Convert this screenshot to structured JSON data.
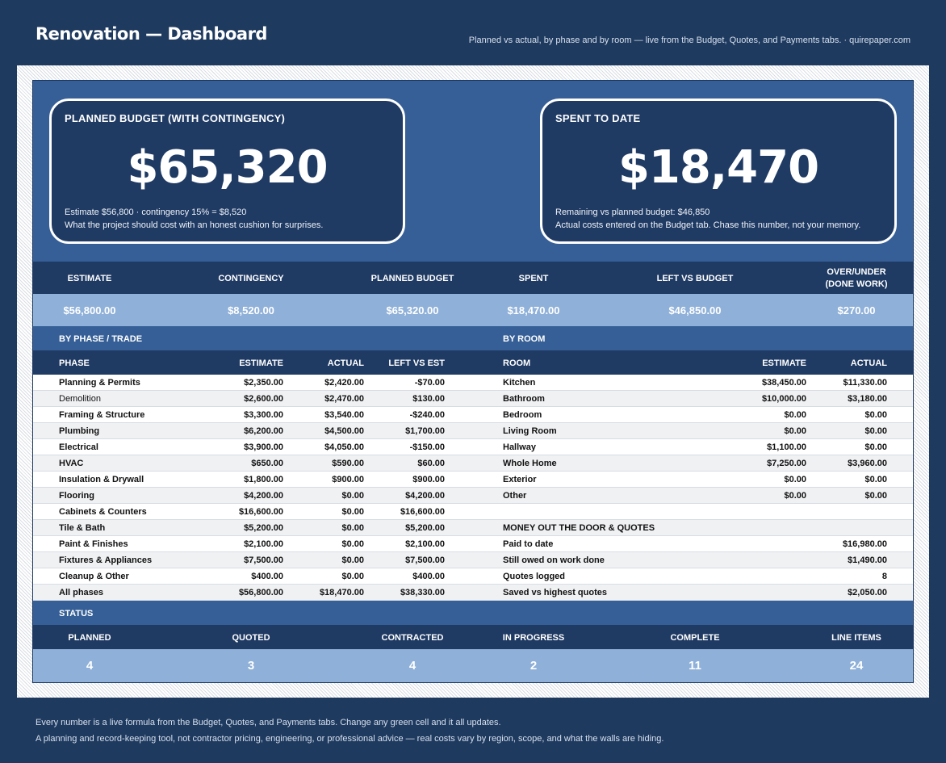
{
  "header": {
    "title": "Renovation — Dashboard",
    "subtitle": "Planned vs actual, by phase and by room — live from the Budget, Quotes, and Payments tabs.  ·  quirepaper.com"
  },
  "cards": {
    "planned": {
      "title": "PLANNED BUDGET (WITH CONTINGENCY)",
      "value": "$65,320",
      "line1": "Estimate $56,800  ·  contingency 15% = $8,520",
      "line2": "What the project should cost with an honest cushion for surprises."
    },
    "spent": {
      "title": "SPENT TO DATE",
      "value": "$18,470",
      "line1": "Remaining vs planned budget: $46,850",
      "line2": "Actual costs entered on the Budget tab. Chase this number, not your memory."
    }
  },
  "summary": {
    "headers": [
      "ESTIMATE",
      "CONTINGENCY",
      "PLANNED BUDGET",
      "SPENT",
      "LEFT VS BUDGET",
      "OVER/UNDER",
      "(DONE WORK)"
    ],
    "values": [
      "$56,800.00",
      "$8,520.00",
      "$65,320.00",
      "$18,470.00",
      "$46,850.00",
      "$270.00"
    ]
  },
  "phase": {
    "section": "BY PHASE / TRADE",
    "cols": [
      "PHASE",
      "ESTIMATE",
      "ACTUAL",
      "LEFT VS EST"
    ],
    "rows": [
      [
        "Planning & Permits",
        "$2,350.00",
        "$2,420.00",
        "-$70.00"
      ],
      [
        "Demolition",
        "$2,600.00",
        "$2,470.00",
        "$130.00"
      ],
      [
        "Framing & Structure",
        "$3,300.00",
        "$3,540.00",
        "-$240.00"
      ],
      [
        "Plumbing",
        "$6,200.00",
        "$4,500.00",
        "$1,700.00"
      ],
      [
        "Electrical",
        "$3,900.00",
        "$4,050.00",
        "-$150.00"
      ],
      [
        "HVAC",
        "$650.00",
        "$590.00",
        "$60.00"
      ],
      [
        "Insulation & Drywall",
        "$1,800.00",
        "$900.00",
        "$900.00"
      ],
      [
        "Flooring",
        "$4,200.00",
        "$0.00",
        "$4,200.00"
      ],
      [
        "Cabinets & Counters",
        "$16,600.00",
        "$0.00",
        "$16,600.00"
      ],
      [
        "Tile & Bath",
        "$5,200.00",
        "$0.00",
        "$5,200.00"
      ],
      [
        "Paint & Finishes",
        "$2,100.00",
        "$0.00",
        "$2,100.00"
      ],
      [
        "Fixtures & Appliances",
        "$7,500.00",
        "$0.00",
        "$7,500.00"
      ],
      [
        "Cleanup & Other",
        "$400.00",
        "$0.00",
        "$400.00"
      ],
      [
        "All phases",
        "$56,800.00",
        "$18,470.00",
        "$38,330.00"
      ]
    ]
  },
  "room": {
    "section": "BY ROOM",
    "cols": [
      "ROOM",
      "ESTIMATE",
      "ACTUAL"
    ],
    "rows": [
      [
        "Kitchen",
        "$38,450.00",
        "$11,330.00"
      ],
      [
        "Bathroom",
        "$10,000.00",
        "$3,180.00"
      ],
      [
        "Bedroom",
        "$0.00",
        "$0.00"
      ],
      [
        "Living Room",
        "$0.00",
        "$0.00"
      ],
      [
        "Hallway",
        "$1,100.00",
        "$0.00"
      ],
      [
        "Whole Home",
        "$7,250.00",
        "$3,960.00"
      ],
      [
        "Exterior",
        "$0.00",
        "$0.00"
      ],
      [
        "Other",
        "$0.00",
        "$0.00"
      ]
    ]
  },
  "money": {
    "title": "MONEY OUT THE DOOR & QUOTES",
    "rows": [
      [
        "Paid to date",
        "$16,980.00"
      ],
      [
        "Still owed on work done",
        "$1,490.00"
      ],
      [
        "Quotes logged",
        "8"
      ],
      [
        "Saved vs highest quotes",
        "$2,050.00"
      ]
    ]
  },
  "status": {
    "section": "STATUS",
    "headers": [
      "PLANNED",
      "QUOTED",
      "CONTRACTED",
      "IN PROGRESS",
      "COMPLETE",
      "LINE ITEMS"
    ],
    "values": [
      "4",
      "3",
      "4",
      "2",
      "11",
      "24"
    ]
  },
  "footer": {
    "line1": "Every number is a live formula from the Budget, Quotes, and Payments tabs. Change any green cell and it all updates.",
    "line2": "A planning and record-keeping tool, not contractor pricing, engineering, or professional advice — real costs vary by region, scope, and what the walls are hiding."
  }
}
